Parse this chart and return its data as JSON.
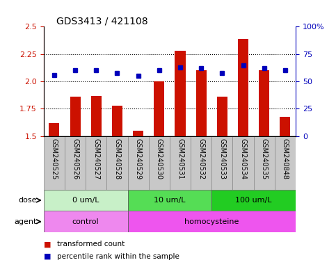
{
  "title": "GDS3413 / 421108",
  "samples": [
    "GSM240525",
    "GSM240526",
    "GSM240527",
    "GSM240528",
    "GSM240529",
    "GSM240530",
    "GSM240531",
    "GSM240532",
    "GSM240533",
    "GSM240534",
    "GSM240535",
    "GSM240848"
  ],
  "red_values": [
    1.62,
    1.86,
    1.87,
    1.78,
    1.55,
    2.0,
    2.28,
    2.1,
    1.86,
    2.39,
    2.1,
    1.68
  ],
  "blue_values": [
    56,
    60,
    60,
    58,
    55,
    60,
    63,
    62,
    58,
    65,
    62,
    60
  ],
  "ylim_left": [
    1.5,
    2.5
  ],
  "ylim_right": [
    0,
    100
  ],
  "yticks_left": [
    1.5,
    1.75,
    2.0,
    2.25,
    2.5
  ],
  "yticks_right": [
    0,
    25,
    50,
    75,
    100
  ],
  "ytick_labels_right": [
    "0",
    "25",
    "50",
    "75",
    "100%"
  ],
  "dose_groups": [
    {
      "label": "0 um/L",
      "start": 0,
      "end": 4,
      "color": "#c8f0c8"
    },
    {
      "label": "10 um/L",
      "start": 4,
      "end": 8,
      "color": "#55dd55"
    },
    {
      "label": "100 um/L",
      "start": 8,
      "end": 12,
      "color": "#22cc22"
    }
  ],
  "agent_groups": [
    {
      "label": "control",
      "start": 0,
      "end": 4,
      "color": "#ee88ee"
    },
    {
      "label": "homocysteine",
      "start": 4,
      "end": 12,
      "color": "#ee55ee"
    }
  ],
  "bar_color": "#cc1100",
  "dot_color": "#0000bb",
  "baseline": 1.5,
  "bg_color": "#ffffff",
  "tick_bg": "#c8c8c8",
  "legend_items": [
    {
      "color": "#cc1100",
      "label": "transformed count"
    },
    {
      "color": "#0000bb",
      "label": "percentile rank within the sample"
    }
  ]
}
